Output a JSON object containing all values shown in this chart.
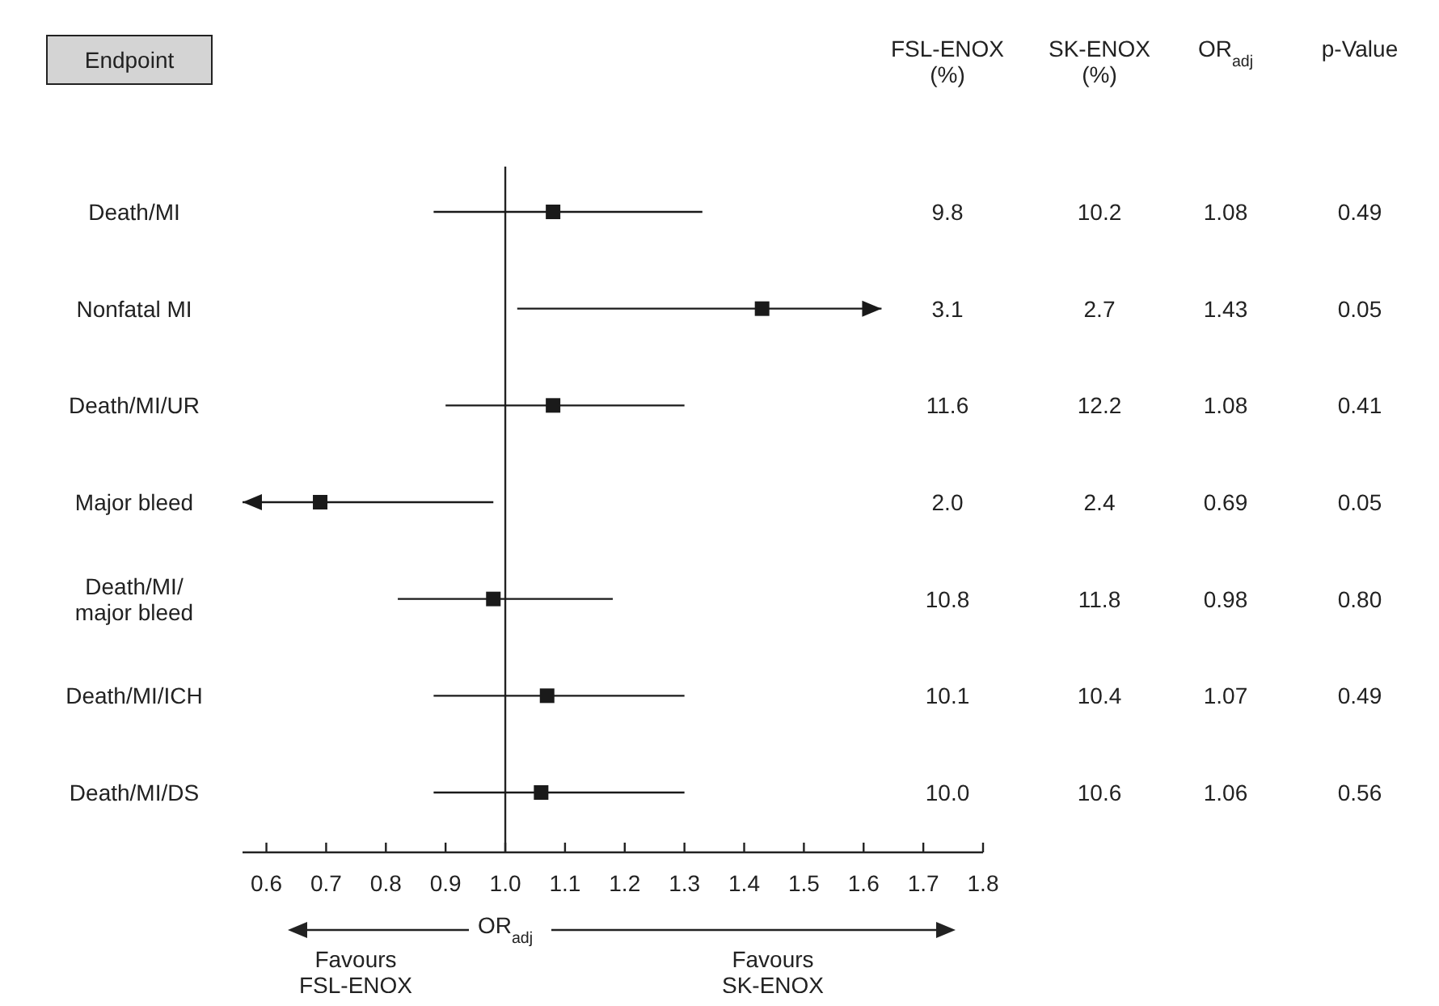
{
  "chart_data": {
    "type": "scatter",
    "orientation": "horizontal",
    "categories": [
      "Death/MI",
      "Nonfatal MI",
      "Death/MI/UR",
      "Major bleed",
      "Death/MI/\nmajor bleed",
      "Death/MI/ICH",
      "Death/MI/DS"
    ],
    "values": [
      1.08,
      1.43,
      1.08,
      0.69,
      0.98,
      1.07,
      1.06
    ],
    "errors": [
      [
        0.88,
        1.33
      ],
      [
        1.02,
        1.63
      ],
      [
        0.9,
        1.3
      ],
      [
        0.56,
        0.98
      ],
      [
        0.82,
        1.18
      ],
      [
        0.88,
        1.3
      ],
      [
        0.88,
        1.3
      ]
    ],
    "color": "#1a1a1a",
    "marker": "square",
    "data_labels": true,
    "xlabel": "OR$_{adj}$",
    "xlim": [
      0.56,
      1.8
    ],
    "xticks": [
      0.6,
      0.7,
      0.8,
      0.9,
      {
        "value": 1,
        "label": "1.0"
      },
      1.1,
      1.2,
      1.3,
      1.4,
      1.5,
      1.6,
      1.7,
      1.8
    ],
    "ref_lines": [
      {
        "axis": "x",
        "value": 1
      }
    ],
    "annotations": [
      "Endpoint",
      "FSL-ENOX\n(%)",
      "SK-ENOX\n(%)",
      "OR$_{adj}$",
      "p-Value",
      "Favours\nFSL-ENOX",
      "Favours\nSK-ENOX",
      "9.8",
      "10.2",
      "0.49",
      "3.1",
      "2.7",
      "0.05",
      "11.6",
      "12.2",
      "0.41",
      "2.0",
      "2.4",
      "0.05",
      "10.8",
      "11.8",
      "0.80",
      "10.1",
      "10.4",
      "0.49",
      "10.0",
      "10.6",
      "0.56"
    ]
  }
}
